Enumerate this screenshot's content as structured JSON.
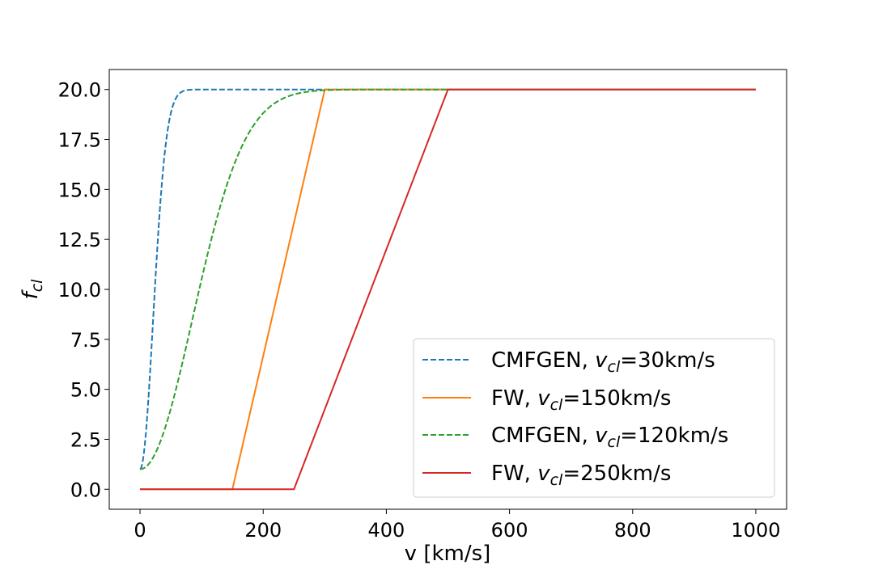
{
  "chart_data": {
    "type": "line",
    "title": "",
    "xlabel": "v [km/s]",
    "ylabel": {
      "base": "f",
      "sub": "cl"
    },
    "xlim": [
      -50,
      1050
    ],
    "ylim": [
      -1,
      21
    ],
    "xticks": [
      0,
      200,
      400,
      600,
      800,
      1000
    ],
    "xtick_labels": [
      "0",
      "200",
      "400",
      "600",
      "800",
      "1000"
    ],
    "yticks": [
      0,
      2.5,
      5,
      7.5,
      10,
      12.5,
      15,
      17.5,
      20
    ],
    "ytick_labels": [
      "0.0",
      "2.5",
      "5.0",
      "7.5",
      "10.0",
      "12.5",
      "15.0",
      "17.5",
      "20.0"
    ],
    "grid": false,
    "legend_position": "lower-right",
    "series": [
      {
        "name": "CMFGEN, v_cl=30km/s",
        "label_parts": {
          "prefix": "CMFGEN, ",
          "var": "v",
          "sub": "cl",
          "suffix": "=30km/s"
        },
        "color": "#1f77b4",
        "dashed": true,
        "model": "cmfgen",
        "f_inf": 20,
        "f_0": 1,
        "v_cl": 30,
        "v_inf": 1000,
        "beta": 1,
        "v_min": 0,
        "v_max": 300
      },
      {
        "name": "FW, v_cl=150km/s",
        "label_parts": {
          "prefix": "FW, ",
          "var": "v",
          "sub": "cl",
          "suffix": "=150km/s"
        },
        "color": "#ff7f0e",
        "dashed": false,
        "model": "piecewise",
        "points": [
          [
            0,
            0
          ],
          [
            150,
            0
          ],
          [
            300,
            20
          ],
          [
            1000,
            20
          ]
        ]
      },
      {
        "name": "CMFGEN, v_cl=120km/s",
        "label_parts": {
          "prefix": "CMFGEN, ",
          "var": "v",
          "sub": "cl",
          "suffix": "=120km/s"
        },
        "color": "#2ca02c",
        "dashed": true,
        "model": "cmfgen",
        "f_inf": 20,
        "f_0": 1,
        "v_cl": 120,
        "v_inf": 1000,
        "beta": 1,
        "v_min": 0,
        "v_max": 1000
      },
      {
        "name": "FW, v_cl=250km/s",
        "label_parts": {
          "prefix": "FW, ",
          "var": "v",
          "sub": "cl",
          "suffix": "=250km/s"
        },
        "color": "#d62728",
        "dashed": false,
        "model": "piecewise",
        "points": [
          [
            0,
            0
          ],
          [
            250,
            0
          ],
          [
            500,
            20
          ],
          [
            1000,
            20
          ]
        ]
      }
    ]
  }
}
